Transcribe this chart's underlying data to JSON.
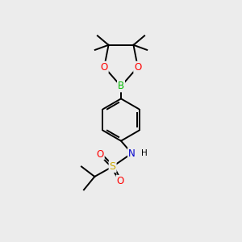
{
  "bg_color": "#ececec",
  "atom_colors": {
    "C": "#000000",
    "H": "#000000",
    "O": "#ff0000",
    "N": "#0000cd",
    "B": "#00bb00",
    "S": "#ccaa00"
  },
  "bond_color": "#000000",
  "bond_width": 1.4,
  "font_size_atom": 8.5,
  "font_size_small": 7.0,
  "scale": 1.0
}
